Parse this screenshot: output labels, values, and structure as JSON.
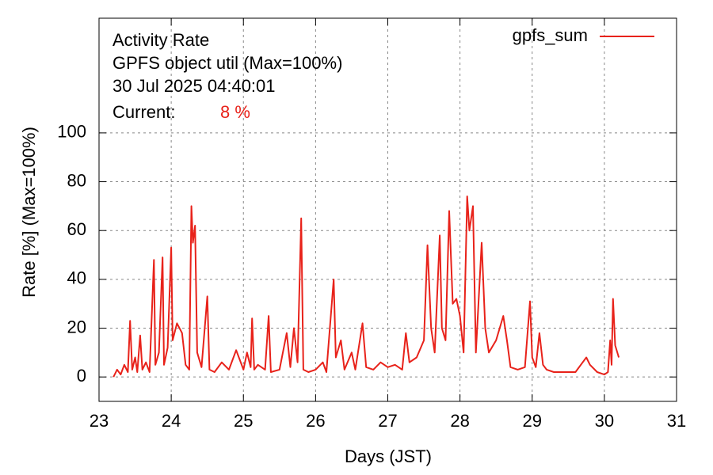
{
  "chart_data": {
    "type": "line",
    "annotations": [
      "Activity Rate",
      "GPFS object util (Max=100%)",
      "30 Jul 2025 04:40:01",
      "Current:",
      "8 %"
    ],
    "x_label": "Days (JST)",
    "y_label": "Rate [%]  (Max=100%)",
    "xlim": [
      23,
      31
    ],
    "xticks": [
      23,
      24,
      25,
      26,
      27,
      28,
      29,
      30,
      31
    ],
    "ylim": [
      -10,
      147
    ],
    "yticks": [
      0,
      20,
      40,
      60,
      80,
      100
    ],
    "grid": true,
    "legend": "top-right",
    "x": [
      23.2,
      23.25,
      23.3,
      23.35,
      23.4,
      23.43,
      23.46,
      23.5,
      23.53,
      23.57,
      23.6,
      23.65,
      23.7,
      23.76,
      23.78,
      23.83,
      23.88,
      23.9,
      23.95,
      24.0,
      24.02,
      24.08,
      24.15,
      24.2,
      24.25,
      24.28,
      24.3,
      24.33,
      24.36,
      24.42,
      24.5,
      24.53,
      24.6,
      24.7,
      24.8,
      24.9,
      25.0,
      25.05,
      25.1,
      25.12,
      25.15,
      25.2,
      25.3,
      25.35,
      25.38,
      25.5,
      25.6,
      25.65,
      25.7,
      25.75,
      25.8,
      25.83,
      25.9,
      26.0,
      26.1,
      26.15,
      26.25,
      26.28,
      26.35,
      26.4,
      26.5,
      26.55,
      26.65,
      26.7,
      26.8,
      26.9,
      27.0,
      27.1,
      27.2,
      27.25,
      27.3,
      27.4,
      27.5,
      27.55,
      27.6,
      27.65,
      27.72,
      27.75,
      27.8,
      27.85,
      27.9,
      27.95,
      28.0,
      28.05,
      28.1,
      28.13,
      28.18,
      28.22,
      28.3,
      28.35,
      28.4,
      28.5,
      28.6,
      28.65,
      28.7,
      28.8,
      28.9,
      28.97,
      29.0,
      29.05,
      29.1,
      29.15,
      29.2,
      29.3,
      29.4,
      29.5,
      29.6,
      29.7,
      29.75,
      29.8,
      29.9,
      30.0,
      30.05,
      30.08,
      30.1,
      30.12,
      30.15,
      30.2
    ],
    "series": [
      {
        "name": "gpfs_sum",
        "color": "#e8221a",
        "values": [
          0,
          3,
          1,
          5,
          2,
          23,
          3,
          8,
          2,
          17,
          3,
          6,
          2,
          48,
          5,
          10,
          49,
          5,
          12,
          53,
          15,
          22,
          18,
          5,
          3,
          70,
          55,
          62,
          10,
          4,
          33,
          3,
          2,
          6,
          3,
          11,
          3,
          10,
          4,
          24,
          3,
          5,
          3,
          25,
          2,
          3,
          18,
          4,
          20,
          6,
          65,
          3,
          2,
          3,
          6,
          2,
          40,
          8,
          15,
          3,
          10,
          3,
          22,
          4,
          3,
          6,
          4,
          5,
          3,
          18,
          6,
          8,
          15,
          54,
          20,
          10,
          58,
          20,
          15,
          68,
          30,
          32,
          25,
          10,
          74,
          60,
          70,
          10,
          55,
          20,
          10,
          15,
          25,
          15,
          4,
          3,
          4,
          31,
          8,
          4,
          18,
          5,
          3,
          2,
          2,
          2,
          2,
          6,
          8,
          5,
          2,
          1,
          2,
          15,
          5,
          32,
          13,
          8
        ]
      }
    ]
  }
}
